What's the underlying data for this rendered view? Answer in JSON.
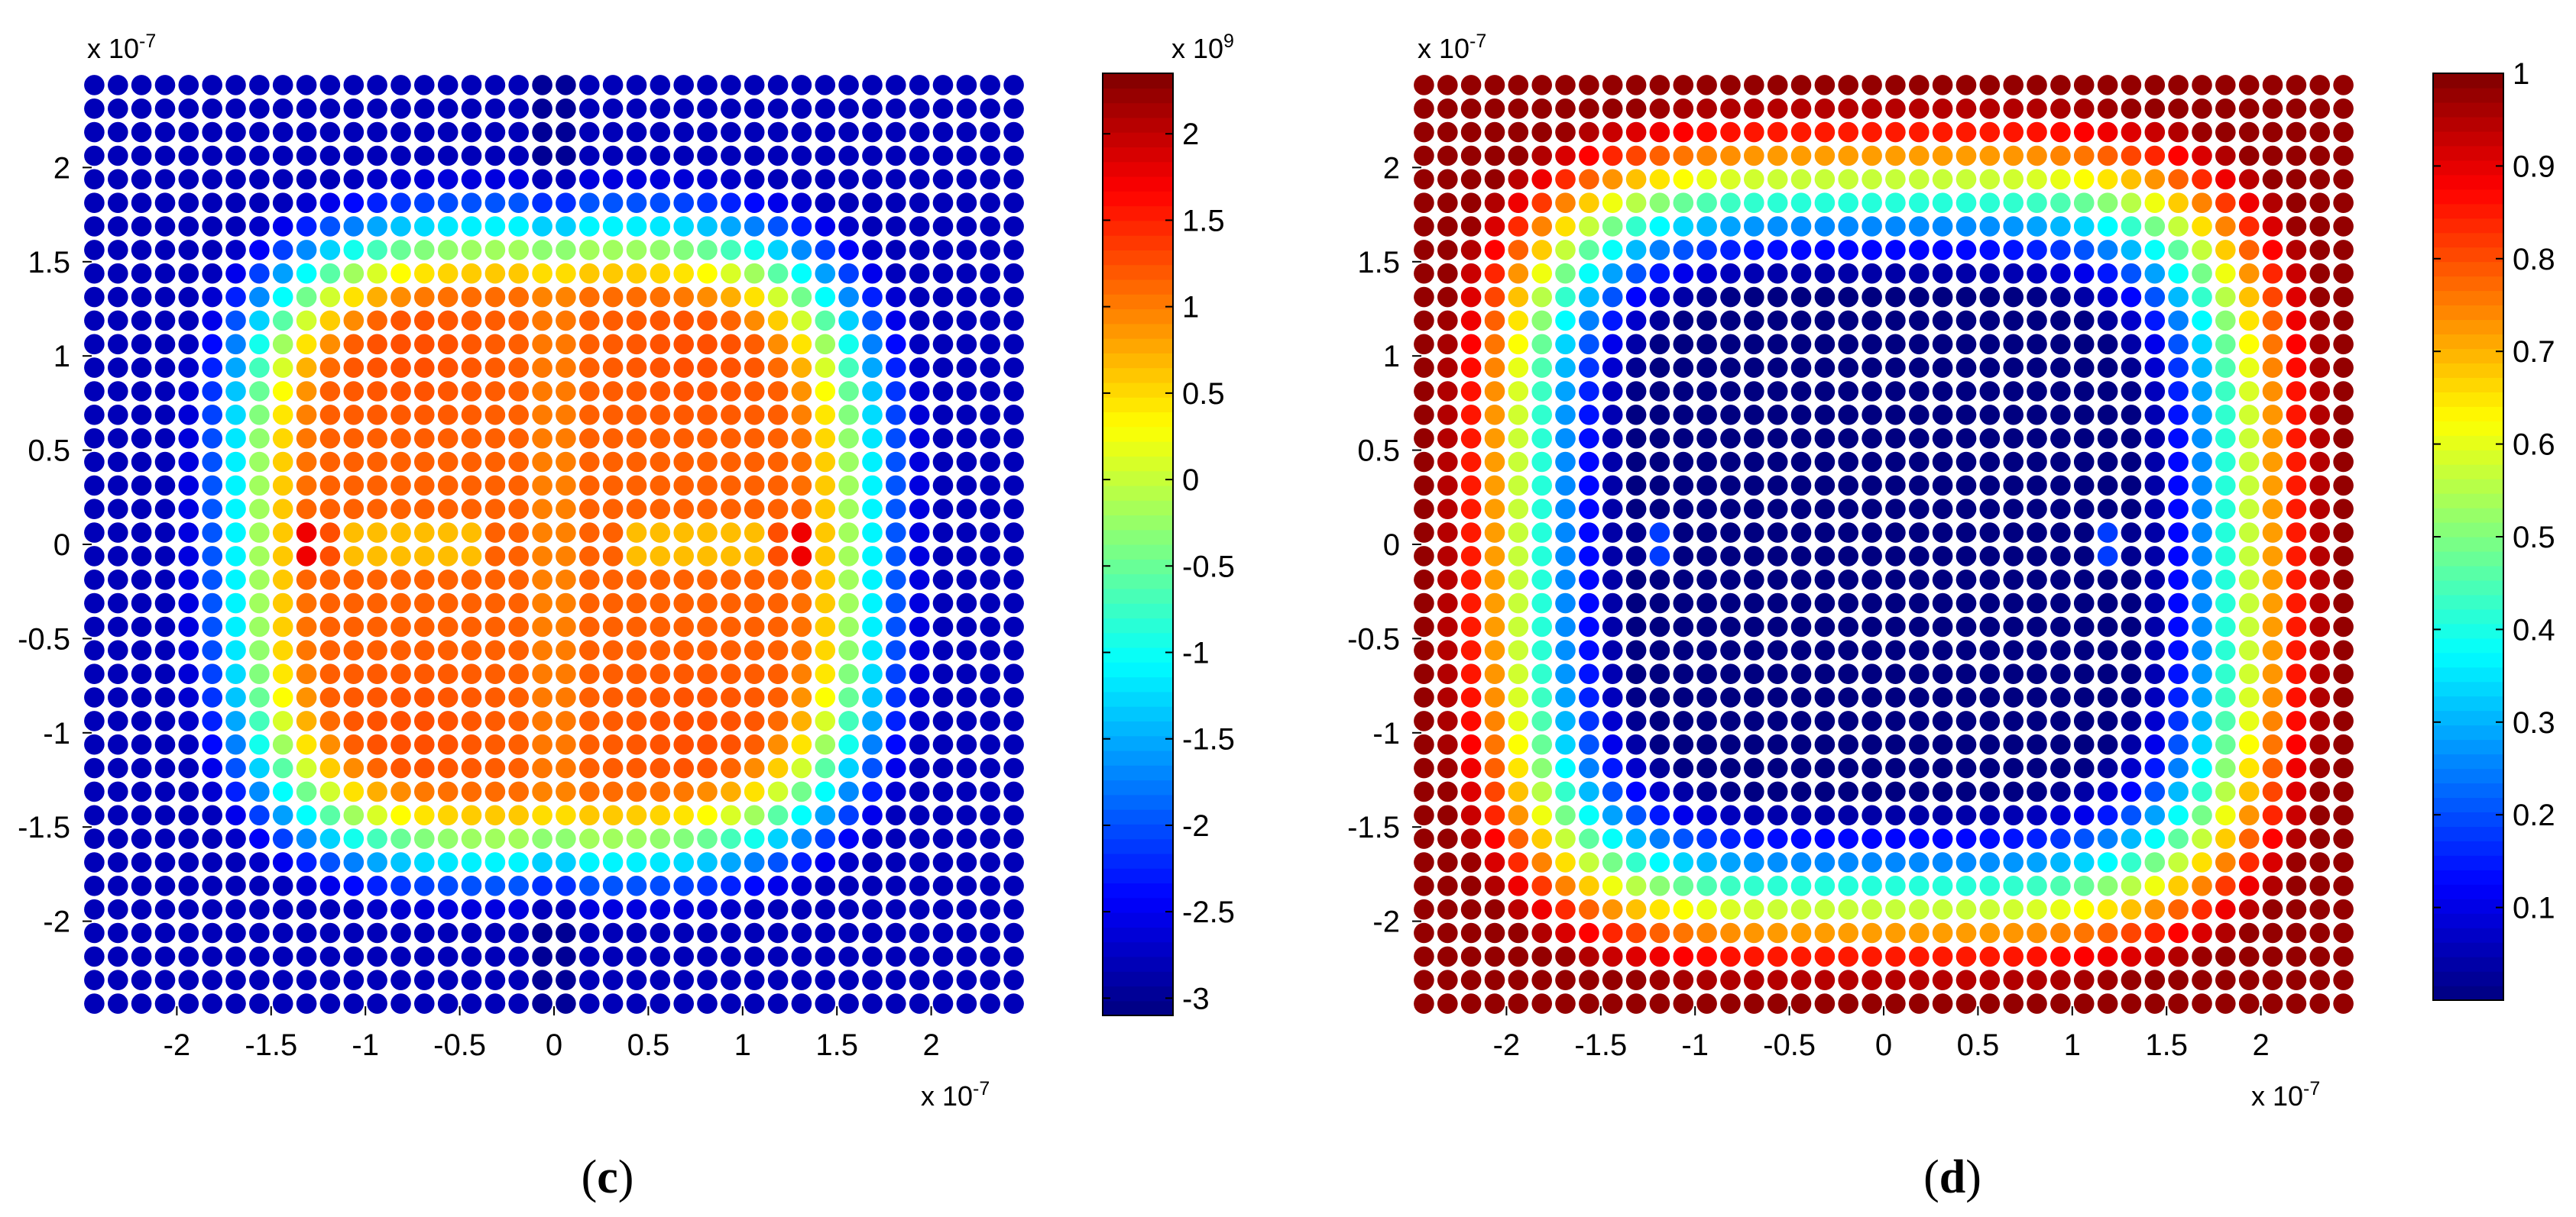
{
  "chart_data": [
    {
      "type": "scatter",
      "panel_label": "c",
      "title": "",
      "xlabel": "",
      "ylabel": "",
      "x_multiplier_label": "x 10",
      "x_multiplier_exponent": "-7",
      "y_multiplier_label": "x 10",
      "y_multiplier_exponent": "-7",
      "xlim": [
        -2.5,
        2.5
      ],
      "ylim": [
        -2.5,
        2.5
      ],
      "xticks": [
        "-2",
        "-1.5",
        "-1",
        "-0.5",
        "0",
        "0.5",
        "1",
        "1.5",
        "2"
      ],
      "yticks": [
        "2",
        "1.5",
        "1",
        "0.5",
        "0",
        "-0.5",
        "-1",
        "-1.5",
        "-2"
      ],
      "grid": "40 x 40 square lattice of sample points (scaled units, x 10^-7)",
      "colormap": "jet",
      "colorbar": {
        "range": [
          -3.1,
          2.35
        ],
        "multiplier_label": "x 10",
        "multiplier_exponent": "9",
        "ticks": [
          "2",
          "1.5",
          "1",
          "0.5",
          "0",
          "-0.5",
          "-1",
          "-1.5",
          "-2",
          "-2.5",
          "-3"
        ]
      },
      "field_description": "Inner rounded square (|x|,|y| < ~1.6) at about 1.0–1.3 (x10^9); outer region about -2.5 to -3; two peaks of ~2.3 at (±1.28, 0); green notches between x = ±0.35 and ±1.15 at y ≈ 0"
    },
    {
      "type": "scatter",
      "panel_label": "d",
      "title": "",
      "xlabel": "",
      "ylabel": "",
      "x_multiplier_label": "x 10",
      "x_multiplier_exponent": "-7",
      "y_multiplier_label": "x 10",
      "y_multiplier_exponent": "-7",
      "xlim": [
        -2.5,
        2.5
      ],
      "ylim": [
        -2.5,
        2.5
      ],
      "xticks": [
        "-2",
        "-1.5",
        "-1",
        "-0.5",
        "0",
        "0.5",
        "1",
        "1.5",
        "2"
      ],
      "yticks": [
        "2",
        "1.5",
        "1",
        "0.5",
        "0",
        "-0.5",
        "-1",
        "-1.5",
        "-2"
      ],
      "grid": "40 x 40 square lattice of sample points (scaled units, x 10^-7)",
      "colormap": "jet",
      "colorbar": {
        "range": [
          0,
          1
        ],
        "ticks": [
          "1",
          "0.9",
          "0.8",
          "0.7",
          "0.6",
          "0.5",
          "0.4",
          "0.3",
          "0.2",
          "0.1"
        ]
      },
      "field_description": "Rounded square of value ~0 inside |x|,|y| < ~1.45, rising to ~1 at the outer boundary; small green spots (~0.5) at (±1.22, 0)"
    }
  ]
}
